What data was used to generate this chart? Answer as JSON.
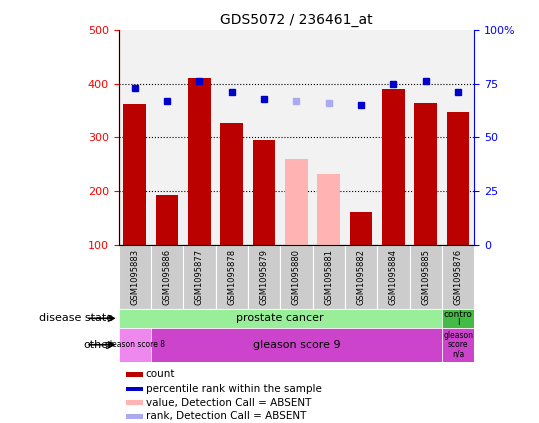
{
  "title": "GDS5072 / 236461_at",
  "samples": [
    "GSM1095883",
    "GSM1095886",
    "GSM1095877",
    "GSM1095878",
    "GSM1095879",
    "GSM1095880",
    "GSM1095881",
    "GSM1095882",
    "GSM1095884",
    "GSM1095885",
    "GSM1095876"
  ],
  "bar_values": [
    362,
    193,
    410,
    326,
    295,
    null,
    null,
    161,
    390,
    364,
    348
  ],
  "bar_absent_values": [
    null,
    null,
    null,
    null,
    null,
    260,
    232,
    null,
    null,
    null,
    null
  ],
  "rank_values": [
    73,
    67,
    76,
    71,
    68,
    null,
    null,
    65,
    75,
    76,
    71
  ],
  "rank_absent_values": [
    null,
    null,
    null,
    null,
    null,
    67,
    66,
    null,
    null,
    null,
    null
  ],
  "bar_color": "#bb0000",
  "bar_absent_color": "#ffb3b3",
  "rank_color": "#0000cc",
  "rank_absent_color": "#aaaaee",
  "ylim_left": [
    100,
    500
  ],
  "ylim_right": [
    0,
    100
  ],
  "left_yticks": [
    100,
    200,
    300,
    400,
    500
  ],
  "right_yticks": [
    0,
    25,
    50,
    75,
    100
  ],
  "hgrid_vals": [
    200,
    300,
    400
  ],
  "prostate_color": "#99ee99",
  "control_color": "#44bb44",
  "gleason8_color": "#ee88ee",
  "gleason9_color": "#cc44cc",
  "gleasonNA_color": "#cc44cc",
  "col_bg_color": "#cccccc",
  "legend_items": [
    {
      "color": "#bb0000",
      "label": "count"
    },
    {
      "color": "#0000cc",
      "label": "percentile rank within the sample"
    },
    {
      "color": "#ffb3b3",
      "label": "value, Detection Call = ABSENT"
    },
    {
      "color": "#aaaaee",
      "label": "rank, Detection Call = ABSENT"
    }
  ]
}
